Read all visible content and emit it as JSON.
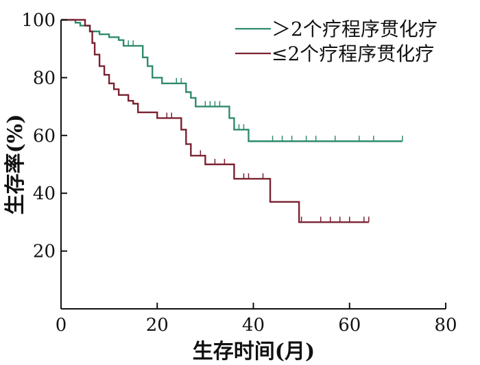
{
  "chart_data": {
    "type": "line",
    "title": "",
    "xlabel": "生存时间(月)",
    "ylabel": "生存率(%)",
    "xlim": [
      0,
      80
    ],
    "ylim": [
      0,
      100
    ],
    "x_ticks": [
      0,
      20,
      40,
      60,
      80
    ],
    "y_ticks": [
      20,
      40,
      60,
      80,
      100
    ],
    "grid": false,
    "legend_position": "top-right",
    "series": [
      {
        "name": "＞2个疗程序贯化疗",
        "color": "#2e8b6a",
        "step_points": [
          [
            0,
            100
          ],
          [
            2,
            100
          ],
          [
            3,
            99
          ],
          [
            4,
            98
          ],
          [
            5,
            98
          ],
          [
            6,
            96
          ],
          [
            8,
            95
          ],
          [
            10,
            94
          ],
          [
            12,
            93
          ],
          [
            13,
            91
          ],
          [
            16,
            91
          ],
          [
            17,
            87
          ],
          [
            18,
            84
          ],
          [
            19,
            80
          ],
          [
            20,
            80
          ],
          [
            21,
            78
          ],
          [
            25,
            78
          ],
          [
            26,
            75
          ],
          [
            27,
            73
          ],
          [
            28,
            70
          ],
          [
            34,
            70
          ],
          [
            35,
            66
          ],
          [
            36,
            62
          ],
          [
            38,
            62
          ],
          [
            39,
            58
          ],
          [
            71,
            58
          ]
        ],
        "censor_x": [
          14,
          15,
          24,
          25,
          27,
          30,
          31,
          32,
          33,
          37,
          38,
          44,
          46,
          48,
          51,
          53,
          57,
          62,
          65,
          71
        ]
      },
      {
        "name": "≤2个疗程序贯化疗",
        "color": "#7a2030",
        "step_points": [
          [
            0,
            100
          ],
          [
            3,
            100
          ],
          [
            5,
            98
          ],
          [
            6,
            96
          ],
          [
            6.5,
            92
          ],
          [
            7,
            88
          ],
          [
            8,
            84
          ],
          [
            9,
            81
          ],
          [
            10,
            78
          ],
          [
            11,
            76
          ],
          [
            12,
            74
          ],
          [
            13,
            74
          ],
          [
            14,
            72
          ],
          [
            15,
            71
          ],
          [
            16,
            68
          ],
          [
            19,
            68
          ],
          [
            20,
            66
          ],
          [
            24,
            66
          ],
          [
            25,
            62
          ],
          [
            26,
            57
          ],
          [
            27,
            53
          ],
          [
            29,
            53
          ],
          [
            30,
            50
          ],
          [
            35,
            50
          ],
          [
            36,
            45
          ],
          [
            43,
            45
          ],
          [
            43.5,
            37
          ],
          [
            49,
            37
          ],
          [
            49.5,
            30
          ],
          [
            64,
            30
          ]
        ],
        "censor_x": [
          12,
          22,
          23,
          29,
          32,
          34,
          38,
          39,
          42,
          50,
          54,
          56,
          58,
          60,
          63,
          64
        ]
      }
    ]
  }
}
